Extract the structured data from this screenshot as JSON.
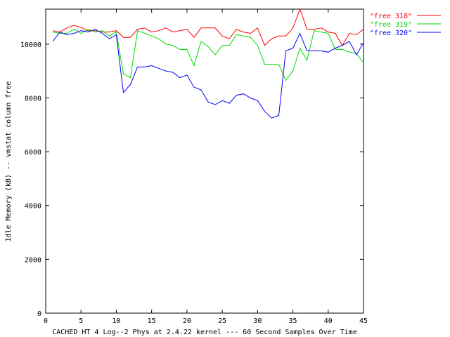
{
  "chart_data": {
    "type": "line",
    "title": "",
    "xlabel": "CACHED HT 4 Log--2 Phys at 2.4.22 kernel --- 60 Second Samples Over Time",
    "ylabel": "Idle Memory (kB) -- vmstat column free",
    "xlim": [
      0,
      45
    ],
    "ylim": [
      0,
      11300
    ],
    "xticks": [
      0,
      5,
      10,
      15,
      20,
      25,
      30,
      35,
      40,
      45
    ],
    "yticks": [
      0,
      2000,
      4000,
      6000,
      8000,
      10000
    ],
    "grid": false,
    "legend_position": "top-right",
    "x": [
      1,
      2,
      3,
      4,
      5,
      6,
      7,
      8,
      9,
      10,
      11,
      12,
      13,
      14,
      15,
      16,
      17,
      18,
      19,
      20,
      21,
      22,
      23,
      24,
      25,
      26,
      27,
      28,
      29,
      30,
      31,
      32,
      33,
      34,
      35,
      36,
      37,
      38,
      39,
      40,
      41,
      42,
      43,
      44,
      45
    ],
    "series": [
      {
        "name": "\"free 318\"",
        "color": "#ff0000",
        "values": [
          10500,
          10450,
          10600,
          10700,
          10620,
          10500,
          10500,
          10450,
          10450,
          10500,
          10250,
          10250,
          10550,
          10600,
          10450,
          10500,
          10600,
          10450,
          10500,
          10550,
          10250,
          10600,
          10600,
          10600,
          10300,
          10200,
          10550,
          10450,
          10400,
          10600,
          9950,
          10200,
          10300,
          10300,
          10600,
          11300,
          10550,
          10550,
          10600,
          10450,
          10400,
          9950,
          10400,
          10350,
          10550
        ]
      },
      {
        "name": "\"free 319\"",
        "color": "#00dd00",
        "values": [
          10450,
          10400,
          10400,
          10550,
          10400,
          10550,
          10450,
          10500,
          10300,
          10450,
          8900,
          8750,
          10500,
          10400,
          10300,
          10200,
          10000,
          9950,
          9800,
          9800,
          9200,
          10100,
          9900,
          9600,
          9950,
          9950,
          10350,
          10300,
          10250,
          9950,
          9250,
          9250,
          9250,
          8650,
          9000,
          9850,
          9400,
          10500,
          10450,
          10400,
          9800,
          9800,
          9700,
          9650,
          9300
        ]
      },
      {
        "name": "\"free 320\"",
        "color": "#0000ff",
        "values": [
          10100,
          10450,
          10350,
          10400,
          10500,
          10450,
          10550,
          10400,
          10200,
          10350,
          8200,
          8500,
          9150,
          9150,
          9200,
          9100,
          9000,
          8950,
          8750,
          8850,
          8400,
          8300,
          7850,
          7750,
          7900,
          7800,
          8100,
          8150,
          8000,
          7900,
          7500,
          7250,
          7350,
          9750,
          9850,
          10400,
          9750,
          9750,
          9750,
          9700,
          9850,
          9950,
          10100,
          9600,
          10050
        ]
      }
    ]
  }
}
